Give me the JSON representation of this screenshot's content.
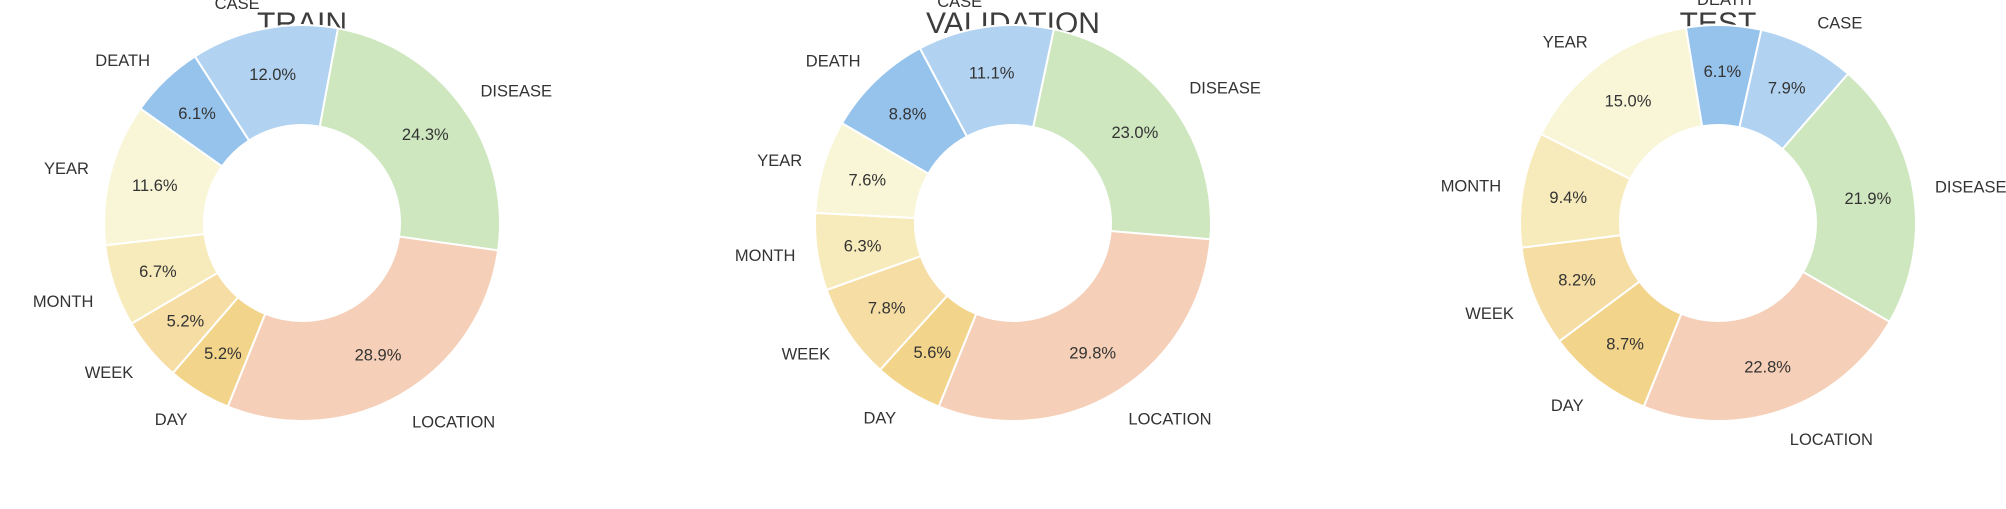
{
  "colors": {
    "DAY": "#f3d48b",
    "WEEK": "#f5dda3",
    "MONTH": "#f8ebbb",
    "YEAR": "#f8f6d7",
    "DEATH": "#96c3ec",
    "CASE": "#b1d3f1",
    "DISEASE": "#cee7bf",
    "LOCATION": "#f5cfb7"
  },
  "chart_data": [
    {
      "type": "pie",
      "title": "TRAIN",
      "donut": true,
      "categories": [
        "DAY",
        "WEEK",
        "MONTH",
        "YEAR",
        "DEATH",
        "CASE",
        "DISEASE",
        "LOCATION"
      ],
      "values": [
        5.2,
        5.2,
        6.7,
        11.6,
        6.1,
        12.0,
        24.3,
        28.9
      ],
      "value_labels": [
        "5.2%",
        "5.2%",
        "6.7%",
        "11.6%",
        "6.1%",
        "12.0%",
        "24.3%",
        "28.9%"
      ]
    },
    {
      "type": "pie",
      "title": "VALIDATION",
      "donut": true,
      "categories": [
        "DAY",
        "WEEK",
        "MONTH",
        "YEAR",
        "DEATH",
        "CASE",
        "DISEASE",
        "LOCATION"
      ],
      "values": [
        5.6,
        7.8,
        6.3,
        7.6,
        8.8,
        11.1,
        23.0,
        29.8
      ],
      "value_labels": [
        "5.6%",
        "7.8%",
        "6.3%",
        "7.6%",
        "8.8%",
        "11.1%",
        "23.0%",
        "29.8%"
      ]
    },
    {
      "type": "pie",
      "title": "TEST",
      "donut": true,
      "categories": [
        "DAY",
        "WEEK",
        "MONTH",
        "YEAR",
        "DEATH",
        "CASE",
        "DISEASE",
        "LOCATION"
      ],
      "values": [
        8.7,
        8.2,
        9.4,
        15.0,
        6.1,
        7.9,
        21.9,
        22.8
      ],
      "value_labels": [
        "8.7%",
        "8.2%",
        "9.4%",
        "15.0%",
        "6.1%",
        "7.9%",
        "21.9%",
        "22.8%"
      ]
    }
  ]
}
